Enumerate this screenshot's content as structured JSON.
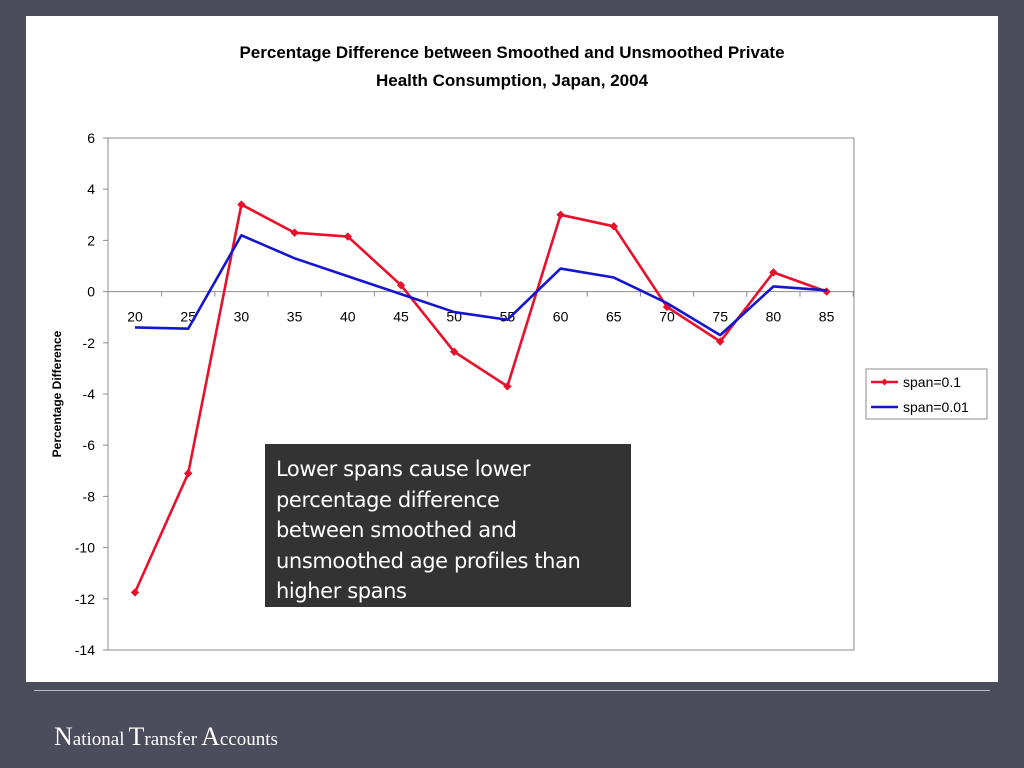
{
  "chart_data": {
    "type": "line",
    "title": "Percentage Difference between Smoothed and Unsmoothed Private Health Consumption, Japan, 2004",
    "title_lines": [
      "Percentage Difference between Smoothed and Unsmoothed Private",
      "Health Consumption, Japan, 2004"
    ],
    "xlabel": "",
    "ylabel": "Percentage Difference",
    "x": [
      20,
      25,
      30,
      35,
      40,
      45,
      50,
      55,
      60,
      65,
      70,
      75,
      80,
      85
    ],
    "ylim": [
      -14,
      6
    ],
    "yticks": [
      6,
      4,
      2,
      0,
      -2,
      -4,
      -6,
      -8,
      -10,
      -12,
      -14
    ],
    "grid": false,
    "legend_position": "right",
    "series": [
      {
        "name": "span=0.1",
        "color": "#e8102a",
        "marker": "diamond",
        "values": [
          -11.75,
          -7.1,
          3.4,
          2.3,
          2.15,
          0.25,
          -2.35,
          -3.7,
          3.0,
          2.55,
          -0.6,
          -1.95,
          0.75,
          0.0
        ]
      },
      {
        "name": "span=0.01",
        "color": "#1414d2",
        "marker": "none",
        "values": [
          -1.4,
          -1.45,
          2.2,
          1.3,
          0.6,
          -0.1,
          -0.8,
          -1.1,
          0.9,
          0.55,
          -0.45,
          -1.7,
          0.2,
          0.05
        ]
      }
    ]
  },
  "callout": {
    "lines": [
      "Lower spans cause lower",
      "percentage difference",
      "between smoothed and",
      "unsmoothed age profiles than",
      "higher spans"
    ]
  },
  "footer": {
    "brand": [
      {
        "cap": "N",
        "rest": "ational"
      },
      {
        "cap": "T",
        "rest": "ransfer"
      },
      {
        "cap": "A",
        "rest": "ccounts"
      }
    ]
  }
}
